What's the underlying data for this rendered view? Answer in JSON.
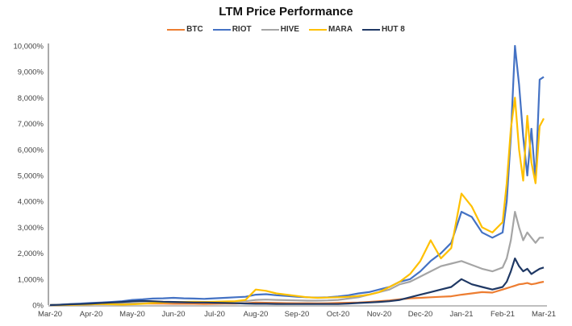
{
  "chart_data": {
    "type": "line",
    "title": "LTM Price Performance",
    "xlabel": "",
    "ylabel": "",
    "ylim": [
      0,
      10000
    ],
    "yticks": [
      "0%",
      "1,000%",
      "2,000%",
      "3,000%",
      "4,000%",
      "5,000%",
      "6,000%",
      "7,000%",
      "8,000%",
      "9,000%",
      "10,000%"
    ],
    "ytick_values": [
      0,
      1000,
      2000,
      3000,
      4000,
      5000,
      6000,
      7000,
      8000,
      9000,
      10000
    ],
    "xticks": [
      "Mar-20",
      "Apr-20",
      "May-20",
      "Jun-20",
      "Jul-20",
      "Aug-20",
      "Sep-20",
      "Oct-20",
      "Nov-20",
      "Dec-20",
      "Jan-21",
      "Feb-21",
      "Mar-21"
    ],
    "x_unit": "months since Mar-20",
    "grid": false,
    "legend": "top-center",
    "x": [
      0,
      0.25,
      0.5,
      0.75,
      1,
      1.25,
      1.5,
      1.75,
      2,
      2.25,
      2.5,
      2.75,
      3,
      3.25,
      3.5,
      3.75,
      4,
      4.25,
      4.5,
      4.75,
      5,
      5.25,
      5.5,
      5.75,
      6,
      6.25,
      6.5,
      6.75,
      7,
      7.25,
      7.5,
      7.75,
      8,
      8.25,
      8.5,
      8.75,
      9,
      9.25,
      9.5,
      9.75,
      10,
      10.25,
      10.5,
      10.75,
      11,
      11.1,
      11.2,
      11.3,
      11.4,
      11.5,
      11.6,
      11.7,
      11.8,
      11.9,
      12
    ],
    "series": [
      {
        "name": "BTC",
        "color": "#ED7D31",
        "values": [
          0,
          0,
          10,
          20,
          30,
          40,
          45,
          50,
          60,
          60,
          55,
          55,
          50,
          50,
          50,
          45,
          50,
          55,
          60,
          70,
          100,
          90,
          80,
          75,
          70,
          70,
          65,
          70,
          80,
          90,
          100,
          120,
          150,
          180,
          220,
          260,
          280,
          300,
          320,
          340,
          400,
          450,
          500,
          480,
          600,
          650,
          700,
          750,
          800,
          820,
          850,
          800,
          830,
          870,
          900
        ]
      },
      {
        "name": "RIOT",
        "color": "#4472C4",
        "values": [
          0,
          20,
          40,
          60,
          80,
          100,
          120,
          150,
          200,
          220,
          250,
          260,
          280,
          260,
          250,
          240,
          260,
          280,
          300,
          320,
          400,
          420,
          380,
          350,
          320,
          300,
          290,
          300,
          330,
          380,
          450,
          500,
          600,
          700,
          900,
          1000,
          1300,
          1700,
          2000,
          2400,
          3600,
          3400,
          2800,
          2600,
          2800,
          4000,
          6500,
          10000,
          8500,
          6500,
          5000,
          6800,
          4800,
          8700,
          8800
        ]
      },
      {
        "name": "HIVE",
        "color": "#A5A5A5",
        "values": [
          0,
          10,
          20,
          30,
          40,
          50,
          60,
          70,
          80,
          80,
          90,
          100,
          110,
          110,
          120,
          110,
          120,
          130,
          140,
          150,
          200,
          210,
          200,
          190,
          180,
          170,
          170,
          180,
          200,
          250,
          300,
          400,
          500,
          600,
          800,
          900,
          1100,
          1300,
          1500,
          1600,
          1700,
          1550,
          1400,
          1300,
          1450,
          1800,
          2500,
          3600,
          3000,
          2500,
          2800,
          2600,
          2400,
          2600,
          2600
        ]
      },
      {
        "name": "MARA",
        "color": "#FFC000",
        "values": [
          0,
          0,
          10,
          20,
          30,
          40,
          30,
          20,
          30,
          50,
          80,
          100,
          120,
          120,
          130,
          120,
          130,
          140,
          150,
          200,
          600,
          550,
          450,
          400,
          350,
          300,
          280,
          290,
          300,
          320,
          350,
          400,
          500,
          700,
          900,
          1200,
          1700,
          2500,
          1800,
          2200,
          4300,
          3800,
          3000,
          2800,
          3200,
          4700,
          6800,
          8000,
          6000,
          4800,
          7300,
          5500,
          4700,
          6900,
          7200
        ]
      },
      {
        "name": "HUT 8",
        "color": "#1F3864",
        "values": [
          0,
          10,
          30,
          40,
          60,
          80,
          100,
          120,
          150,
          160,
          150,
          130,
          120,
          110,
          100,
          100,
          90,
          80,
          70,
          60,
          50,
          50,
          45,
          40,
          40,
          40,
          40,
          40,
          40,
          60,
          80,
          100,
          120,
          150,
          200,
          300,
          400,
          500,
          600,
          700,
          1000,
          800,
          700,
          600,
          700,
          900,
          1300,
          1800,
          1500,
          1300,
          1400,
          1200,
          1300,
          1400,
          1450
        ]
      }
    ]
  }
}
